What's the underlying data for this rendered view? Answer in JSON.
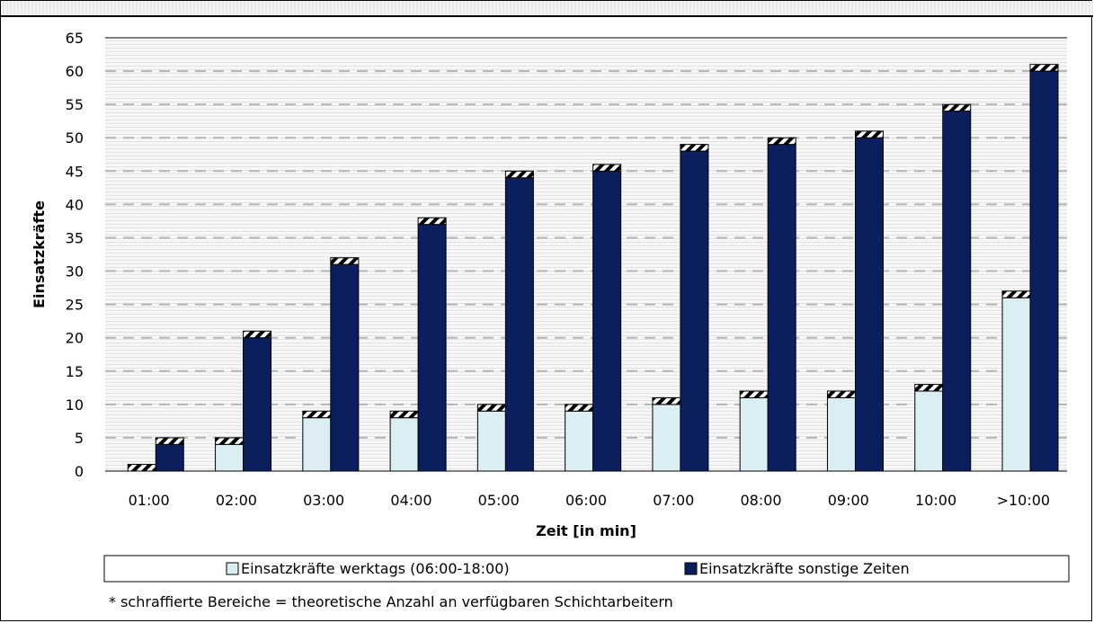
{
  "chart_data": {
    "type": "bar",
    "categories": [
      "01:00",
      "02:00",
      "03:00",
      "04:00",
      "05:00",
      "06:00",
      "07:00",
      "08:00",
      "09:00",
      "10:00",
      ">10:00"
    ],
    "series": [
      {
        "name": "Einsatzkräfte werktags (06:00-18:00)",
        "values": [
          1,
          5,
          9,
          9,
          10,
          10,
          11,
          12,
          12,
          13,
          27
        ],
        "color": "#dbeef3",
        "hatched_top": 1
      },
      {
        "name": "Einsatzkräfte sonstige Zeiten",
        "values": [
          5,
          21,
          32,
          38,
          45,
          46,
          49,
          50,
          51,
          55,
          61
        ],
        "color": "#0b1f5e",
        "hatched_top": 1
      }
    ],
    "xlabel": "Zeit [in min]",
    "ylabel": "Einsatzkräfte",
    "ylim": [
      0,
      65
    ],
    "yticks": [
      0,
      5,
      10,
      15,
      20,
      25,
      30,
      35,
      40,
      45,
      50,
      55,
      60,
      65
    ],
    "grid": "horizontal dashed",
    "legend": "bottom",
    "footnote": "* schraffierte Bereiche = theoretische Anzahl an verfügbaren Schichtarbeitern"
  }
}
